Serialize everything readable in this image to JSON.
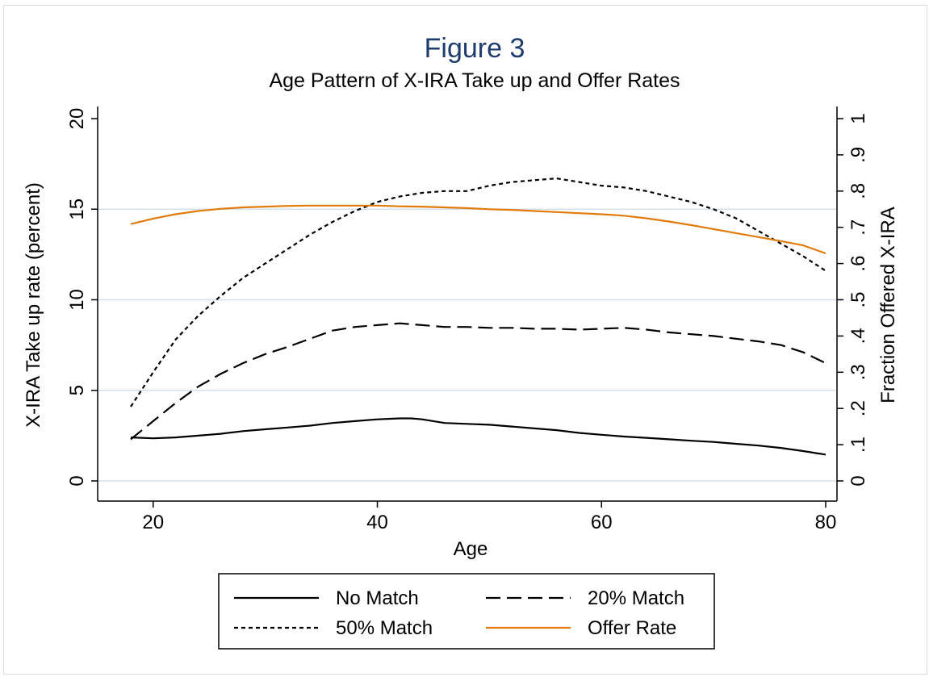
{
  "chart_data": {
    "type": "line",
    "title": "Figure 3",
    "subtitle": "Age Pattern of X-IRA Take up and Offer Rates",
    "xlabel": "Age",
    "ylabel": "X-IRA Take up rate (percent)",
    "y2label": "Fraction Offered X-IRA",
    "xlim": [
      18,
      80
    ],
    "ylim": [
      0,
      20
    ],
    "y2lim": [
      0,
      1
    ],
    "xticks": [
      20,
      40,
      60,
      80
    ],
    "yticks": [
      0,
      5,
      10,
      15,
      20
    ],
    "y2ticks": [
      "0",
      ".1",
      ".2",
      ".3",
      ".4",
      ".5",
      ".6",
      ".7",
      ".8",
      ".9",
      "1"
    ],
    "grid": true,
    "legend_position": "bottom",
    "series": [
      {
        "name": "No Match",
        "axis": "left",
        "color": "#000000",
        "dash": "solid",
        "x": [
          18,
          20,
          22,
          24,
          26,
          28,
          30,
          32,
          34,
          36,
          38,
          40,
          42,
          43,
          44,
          46,
          48,
          50,
          52,
          54,
          56,
          58,
          60,
          62,
          64,
          66,
          68,
          70,
          72,
          74,
          76,
          78,
          80
        ],
        "y": [
          2.4,
          2.35,
          2.4,
          2.5,
          2.6,
          2.75,
          2.85,
          2.95,
          3.05,
          3.2,
          3.3,
          3.4,
          3.45,
          3.45,
          3.4,
          3.2,
          3.15,
          3.1,
          3.0,
          2.9,
          2.8,
          2.65,
          2.55,
          2.45,
          2.38,
          2.3,
          2.22,
          2.15,
          2.05,
          1.95,
          1.82,
          1.65,
          1.45
        ]
      },
      {
        "name": "20% Match",
        "axis": "left",
        "color": "#000000",
        "dash": "long-dash",
        "x": [
          18,
          20,
          22,
          24,
          26,
          28,
          30,
          32,
          34,
          36,
          38,
          40,
          42,
          44,
          46,
          48,
          50,
          52,
          54,
          56,
          58,
          60,
          62,
          64,
          66,
          68,
          70,
          72,
          74,
          76,
          78,
          80
        ],
        "y": [
          2.3,
          3.3,
          4.3,
          5.2,
          5.9,
          6.5,
          7.0,
          7.4,
          7.85,
          8.3,
          8.5,
          8.6,
          8.7,
          8.6,
          8.5,
          8.5,
          8.45,
          8.45,
          8.4,
          8.4,
          8.35,
          8.4,
          8.45,
          8.35,
          8.2,
          8.1,
          8.0,
          7.85,
          7.7,
          7.5,
          7.1,
          6.5
        ]
      },
      {
        "name": "50% Match",
        "axis": "left",
        "color": "#000000",
        "dash": "short-dash",
        "x": [
          18,
          20,
          22,
          24,
          26,
          28,
          30,
          32,
          34,
          36,
          38,
          40,
          42,
          44,
          46,
          48,
          50,
          52,
          54,
          56,
          58,
          60,
          62,
          64,
          66,
          68,
          70,
          72,
          74,
          76,
          78,
          80
        ],
        "y": [
          4.1,
          6.0,
          7.8,
          9.1,
          10.2,
          11.2,
          12.0,
          12.8,
          13.6,
          14.3,
          14.9,
          15.4,
          15.7,
          15.9,
          16.0,
          16.0,
          16.3,
          16.5,
          16.6,
          16.7,
          16.5,
          16.3,
          16.2,
          16.0,
          15.7,
          15.4,
          15.0,
          14.5,
          13.8,
          13.1,
          12.4,
          11.6
        ]
      },
      {
        "name": "Offer Rate",
        "axis": "right",
        "color": "#e07b0c",
        "dash": "solid",
        "x": [
          18,
          20,
          22,
          24,
          26,
          28,
          30,
          32,
          34,
          36,
          38,
          40,
          42,
          44,
          46,
          48,
          50,
          52,
          54,
          56,
          58,
          60,
          62,
          64,
          66,
          68,
          70,
          72,
          74,
          76,
          78,
          80
        ],
        "y": [
          0.709,
          0.724,
          0.736,
          0.745,
          0.751,
          0.755,
          0.757,
          0.759,
          0.76,
          0.76,
          0.76,
          0.76,
          0.758,
          0.757,
          0.755,
          0.753,
          0.75,
          0.748,
          0.745,
          0.742,
          0.739,
          0.736,
          0.732,
          0.725,
          0.716,
          0.706,
          0.695,
          0.684,
          0.673,
          0.662,
          0.65,
          0.628
        ]
      }
    ]
  }
}
